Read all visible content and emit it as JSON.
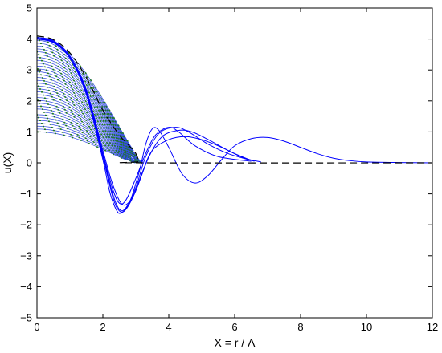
{
  "chart_data": {
    "type": "line",
    "title": "",
    "xlabel": "X = r / Λ",
    "ylabel": "u(X)",
    "xlim": [
      0,
      12
    ],
    "ylim": [
      -5,
      5
    ],
    "xticks": [
      0,
      2,
      4,
      6,
      8,
      10,
      12
    ],
    "yticks": [
      -5,
      -4,
      -3,
      -2,
      -1,
      0,
      1,
      2,
      3,
      4,
      5
    ],
    "grid": false,
    "legend": "none",
    "colors": {
      "oscillating_solutions": "#0000ff",
      "dense_family_blue": "#2f48e0",
      "dense_family_green": "#1f7a1f",
      "reference_dashed": "#000000"
    },
    "series": [
      {
        "style": "blue-solid",
        "points": [
          [
            0,
            4.05
          ],
          [
            0.5,
            3.95
          ],
          [
            1.0,
            3.45
          ],
          [
            1.5,
            2.35
          ],
          [
            2.0,
            0.4
          ],
          [
            2.3,
            -0.7
          ],
          [
            2.6,
            -1.35
          ],
          [
            2.9,
            -1.1
          ],
          [
            3.2,
            -0.3
          ],
          [
            3.5,
            0.4
          ],
          [
            4.0,
            0.75
          ],
          [
            4.5,
            0.85
          ],
          [
            5.0,
            0.75
          ],
          [
            5.5,
            0.55
          ],
          [
            6.0,
            0.3
          ],
          [
            6.5,
            0.08
          ]
        ]
      },
      {
        "style": "blue-solid",
        "points": [
          [
            0,
            4.0
          ],
          [
            0.5,
            3.9
          ],
          [
            1.0,
            3.4
          ],
          [
            1.5,
            2.3
          ],
          [
            2.0,
            0.3
          ],
          [
            2.3,
            -0.85
          ],
          [
            2.5,
            -1.3
          ],
          [
            2.7,
            -1.2
          ],
          [
            3.0,
            -0.5
          ],
          [
            3.3,
            0.3
          ],
          [
            3.6,
            0.9
          ],
          [
            4.0,
            1.15
          ],
          [
            4.3,
            1.0
          ],
          [
            4.8,
            0.55
          ],
          [
            5.5,
            0.2
          ],
          [
            6.5,
            0.05
          ]
        ]
      },
      {
        "style": "blue-solid",
        "points": [
          [
            0,
            4.0
          ],
          [
            0.5,
            3.88
          ],
          [
            1.0,
            3.38
          ],
          [
            1.5,
            2.25
          ],
          [
            2.0,
            0.25
          ],
          [
            2.3,
            -1.0
          ],
          [
            2.5,
            -1.5
          ],
          [
            2.7,
            -1.45
          ],
          [
            3.0,
            -0.8
          ],
          [
            3.3,
            0.2
          ],
          [
            3.7,
            0.95
          ],
          [
            4.2,
            1.15
          ],
          [
            4.6,
            1.0
          ],
          [
            5.2,
            0.6
          ],
          [
            5.8,
            0.3
          ],
          [
            6.6,
            0.05
          ]
        ]
      },
      {
        "style": "blue-solid",
        "points": [
          [
            0,
            4.02
          ],
          [
            0.5,
            3.9
          ],
          [
            1.0,
            3.38
          ],
          [
            1.5,
            2.2
          ],
          [
            2.0,
            0.1
          ],
          [
            2.2,
            -0.9
          ],
          [
            2.4,
            -1.5
          ],
          [
            2.55,
            -1.62
          ],
          [
            2.8,
            -1.3
          ],
          [
            3.1,
            -0.3
          ],
          [
            3.3,
            0.6
          ],
          [
            3.5,
            1.1
          ],
          [
            3.7,
            1.05
          ],
          [
            4.0,
            0.5
          ],
          [
            4.4,
            -0.35
          ],
          [
            4.8,
            -0.65
          ],
          [
            5.2,
            -0.4
          ],
          [
            5.6,
            0.1
          ],
          [
            6.0,
            0.55
          ],
          [
            6.5,
            0.78
          ],
          [
            7.0,
            0.82
          ],
          [
            7.5,
            0.7
          ],
          [
            8.0,
            0.5
          ],
          [
            8.5,
            0.3
          ],
          [
            9.0,
            0.15
          ],
          [
            9.5,
            0.07
          ],
          [
            10.0,
            0.03
          ],
          [
            11.0,
            0.01
          ],
          [
            12.0,
            0.0
          ]
        ]
      },
      {
        "style": "blue-solid",
        "points": [
          [
            0,
            4.05
          ],
          [
            0.5,
            3.92
          ],
          [
            1.0,
            3.4
          ],
          [
            1.5,
            2.25
          ],
          [
            2.0,
            0.2
          ],
          [
            2.3,
            -1.1
          ],
          [
            2.5,
            -1.55
          ],
          [
            2.7,
            -1.5
          ],
          [
            3.0,
            -0.9
          ],
          [
            3.4,
            0.2
          ],
          [
            3.8,
            0.85
          ],
          [
            4.3,
            1.05
          ],
          [
            4.7,
            1.0
          ],
          [
            5.2,
            0.75
          ],
          [
            5.8,
            0.4
          ],
          [
            6.3,
            0.15
          ],
          [
            6.8,
            0.03
          ]
        ]
      },
      {
        "style": "black-dashed",
        "points": [
          [
            0,
            4.1
          ],
          [
            0.5,
            3.98
          ],
          [
            1.0,
            3.55
          ],
          [
            1.5,
            2.75
          ],
          [
            2.0,
            1.7
          ],
          [
            2.5,
            0.9
          ],
          [
            2.8,
            0.55
          ],
          [
            3.0,
            0.3
          ],
          [
            3.1,
            0.05
          ],
          [
            3.2,
            0.0
          ],
          [
            12.0,
            0.0
          ]
        ]
      }
    ],
    "dense_family": {
      "style": "blue-green-hatched",
      "x_range": [
        0,
        3.2
      ],
      "start_values": [
        1.0,
        4.05
      ],
      "end_value": 0
    }
  }
}
